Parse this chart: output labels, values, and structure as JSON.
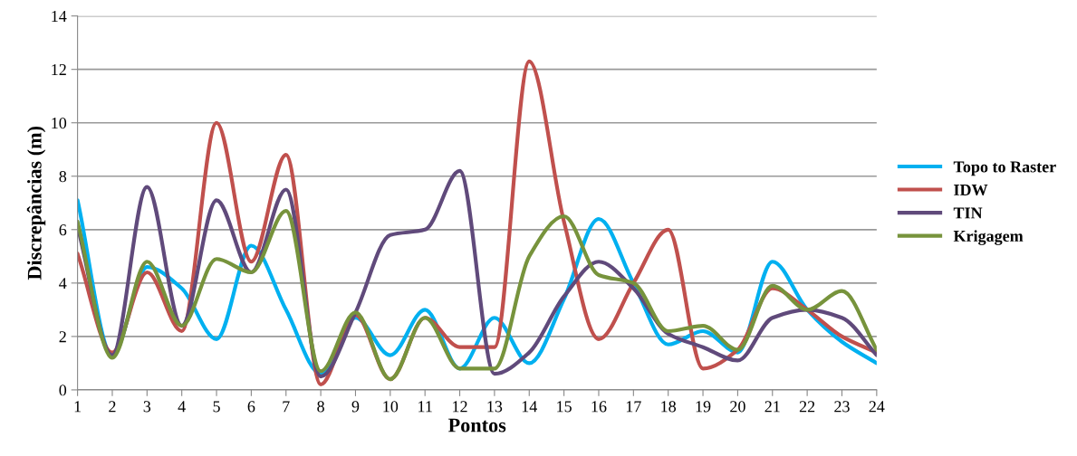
{
  "chart_data": {
    "type": "line",
    "xlabel": "Pontos",
    "ylabel": "Discrepâncias (m)",
    "categories": [
      "1",
      "2",
      "3",
      "4",
      "5",
      "6",
      "7",
      "8",
      "9",
      "10",
      "11",
      "12",
      "13",
      "14",
      "15",
      "16",
      "17",
      "18",
      "19",
      "20",
      "21",
      "22",
      "23",
      "24"
    ],
    "series": [
      {
        "name": "Topo to Raster",
        "color": "#00b0f0",
        "values": [
          7.1,
          1.3,
          4.6,
          3.8,
          1.9,
          5.4,
          3.0,
          0.6,
          2.7,
          1.3,
          3.0,
          0.8,
          2.7,
          1.0,
          3.4,
          6.4,
          4.0,
          1.7,
          2.2,
          1.4,
          4.8,
          3.0,
          1.8,
          1.0
        ]
      },
      {
        "name": "IDW",
        "color": "#c0504d",
        "values": [
          5.1,
          1.4,
          4.4,
          2.2,
          10.0,
          4.8,
          8.8,
          0.2,
          2.8,
          0.4,
          2.7,
          1.6,
          1.6,
          12.3,
          6.3,
          1.9,
          4.0,
          6.0,
          0.8,
          1.5,
          3.8,
          3.0,
          2.0,
          1.4
        ]
      },
      {
        "name": "TIN",
        "color": "#604a7b",
        "values": [
          6.1,
          1.3,
          7.6,
          2.4,
          7.1,
          4.4,
          7.5,
          0.5,
          2.9,
          5.8,
          6.0,
          8.2,
          0.6,
          1.4,
          3.5,
          4.8,
          3.8,
          2.1,
          1.6,
          1.1,
          2.7,
          3.0,
          2.7,
          1.3
        ]
      },
      {
        "name": "Krigagem",
        "color": "#77933c",
        "values": [
          6.3,
          1.2,
          4.8,
          2.4,
          4.9,
          4.4,
          6.7,
          0.7,
          2.9,
          0.4,
          2.7,
          0.8,
          0.8,
          5.0,
          6.5,
          4.3,
          4.0,
          2.2,
          2.4,
          1.5,
          3.9,
          3.0,
          3.7,
          1.5
        ]
      }
    ],
    "ylim": [
      0,
      14
    ],
    "yticks": [
      0,
      2,
      4,
      6,
      8,
      10,
      12,
      14
    ],
    "grid": "y",
    "legend": "right",
    "marker": "none",
    "line_style": "solid"
  }
}
